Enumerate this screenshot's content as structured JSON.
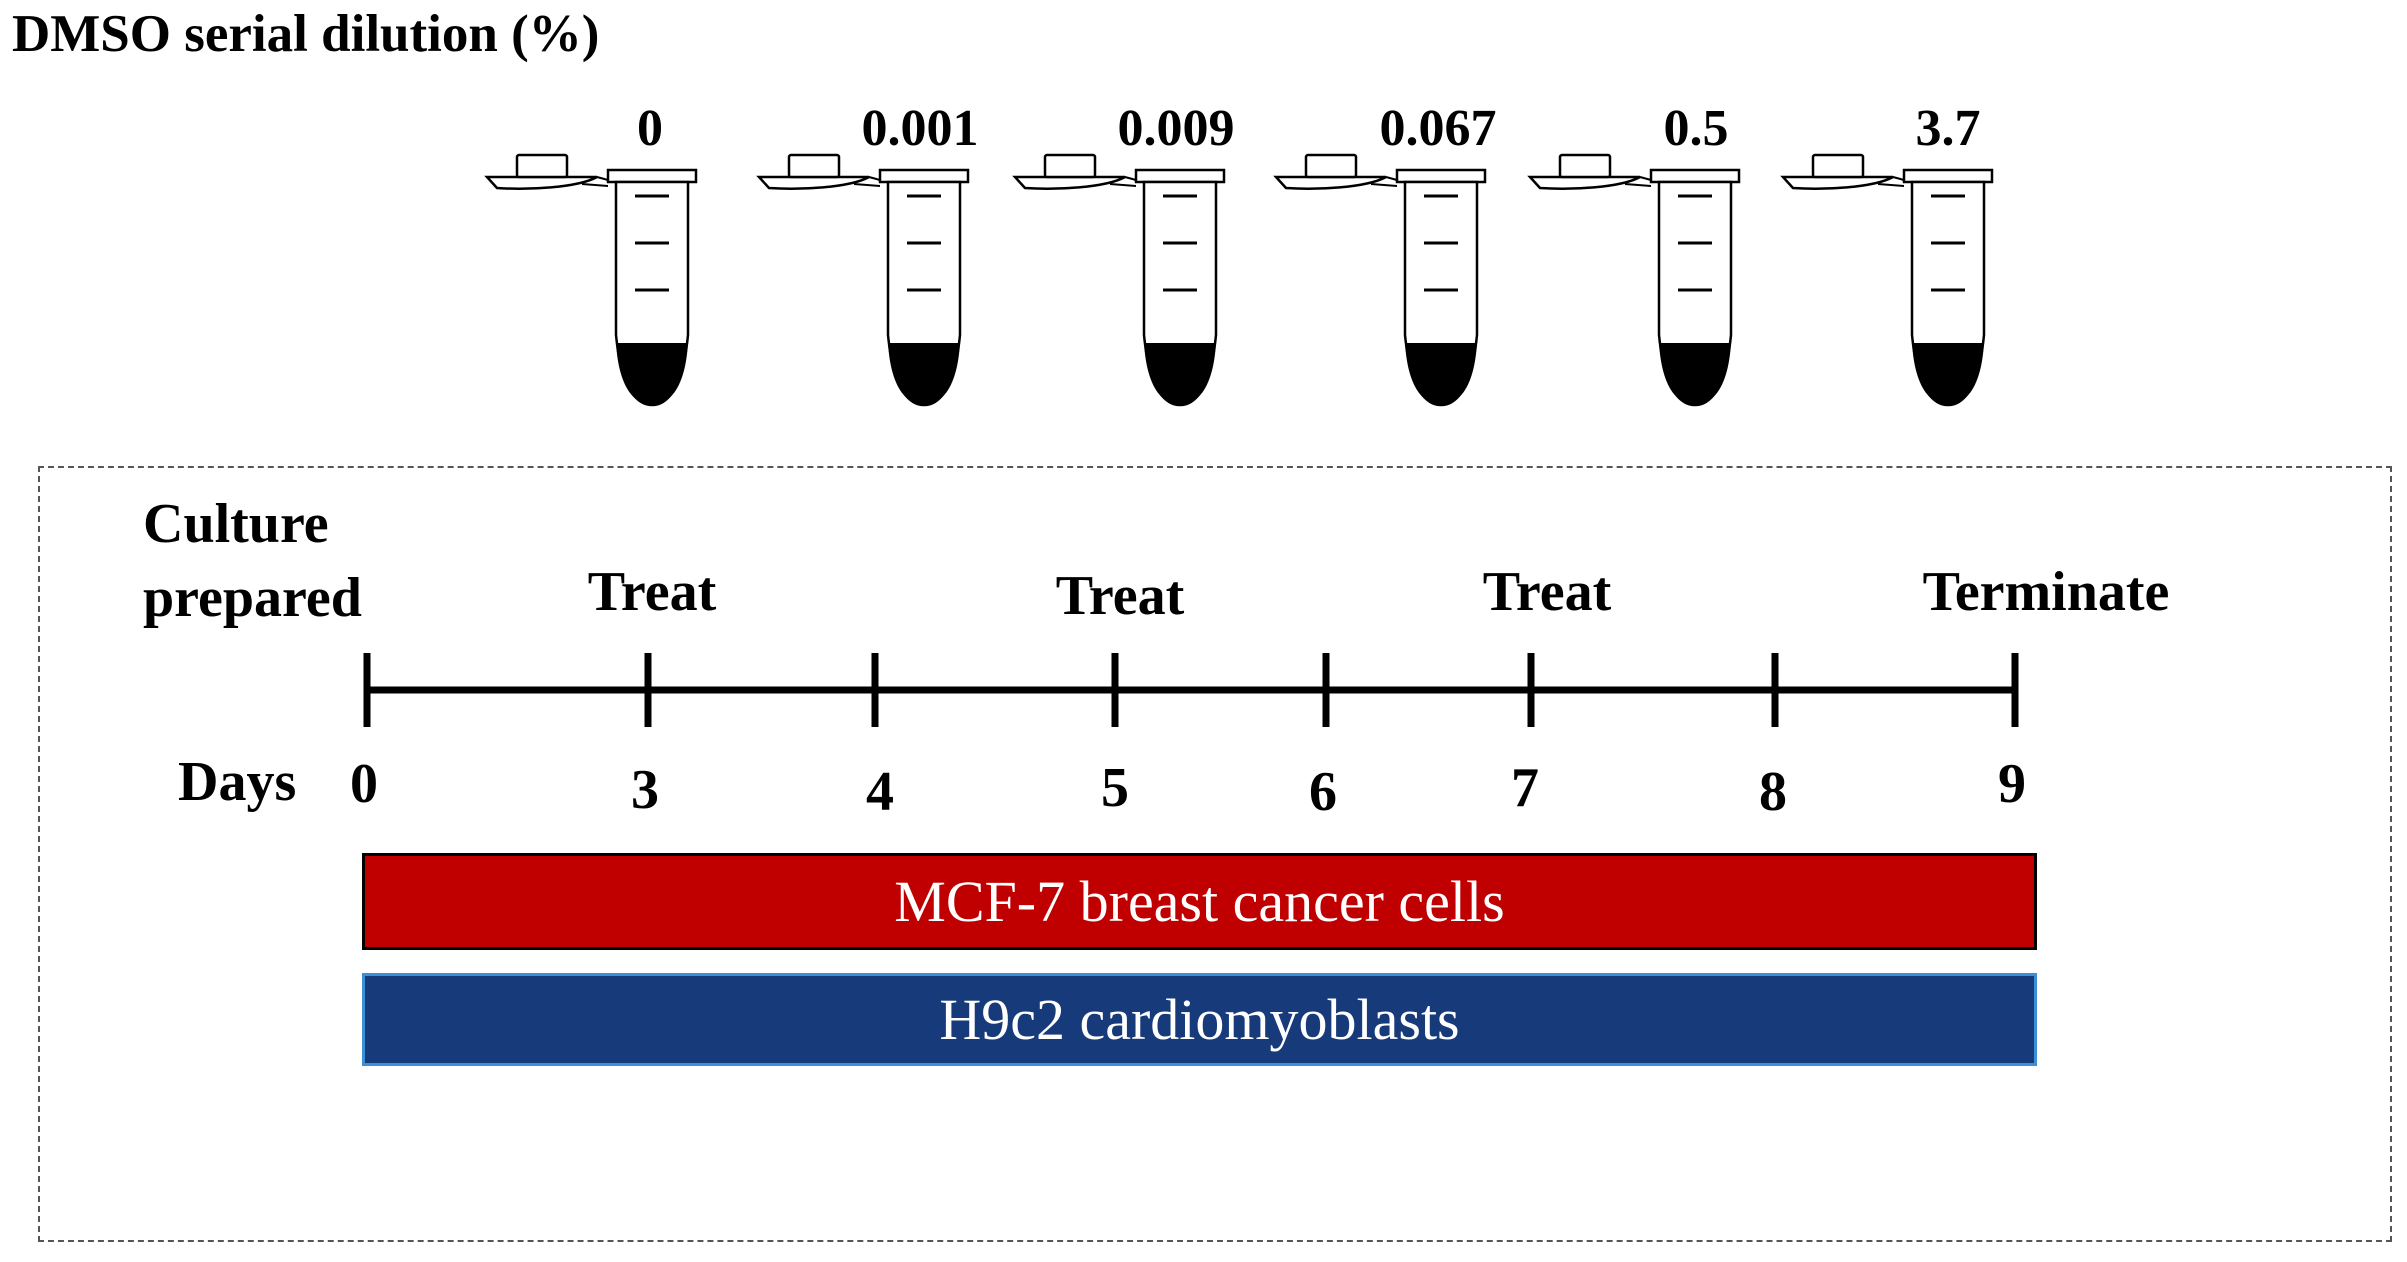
{
  "title": "DMSO serial dilution  (%)",
  "tube_labels": [
    "0",
    "0.001",
    "0.009",
    "0.067",
    "0.5",
    "3.7"
  ],
  "timeline": {
    "start_label_line1": "Culture",
    "start_label_line2": "prepared",
    "days_label": "Days",
    "days": [
      "0",
      "3",
      "4",
      "5",
      "6",
      "7",
      "8",
      "9"
    ],
    "events": [
      {
        "label": "Treat",
        "day": "3"
      },
      {
        "label": "Treat",
        "day": "5"
      },
      {
        "label": "Treat",
        "day": "7"
      },
      {
        "label": "Terminate",
        "day": "9"
      }
    ]
  },
  "cell_lines": [
    {
      "label": "MCF-7 breast cancer cells",
      "color": "#c00000"
    },
    {
      "label": "H9c2 cardiomyoblasts",
      "color": "#163a7a"
    }
  ],
  "colors": {
    "ink": "#000000",
    "mcf7_fill": "#c00000",
    "h9c2_fill": "#163a7a",
    "h9c2_border": "#3d8fd6",
    "frame": "#555555"
  }
}
